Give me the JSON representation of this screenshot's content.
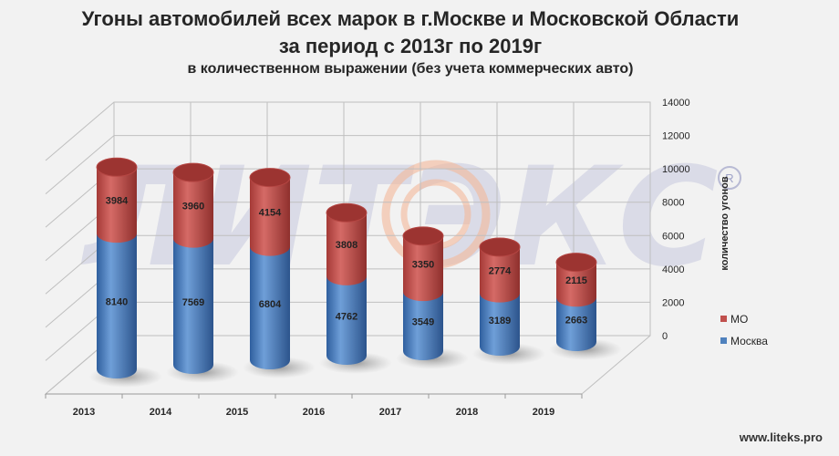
{
  "title_line1": "Угоны автомобилей всех марок в г.Москве и Московской Области",
  "title_line2": "за период с 2013г по 2019г",
  "subtitle": "в количественном выражении (без учета коммерческих авто)",
  "website": "www.liteks.pro",
  "watermark": {
    "text": "ЛИТЭКС",
    "registered": "R"
  },
  "colors": {
    "mo": "#c0504d",
    "moscow": "#4f81bd",
    "grid": "#bfbfbf",
    "text": "#262626",
    "watermark": "#c9cbe0"
  },
  "chart_data": {
    "type": "bar",
    "stacked": true,
    "categories": [
      "2013",
      "2014",
      "2015",
      "2016",
      "2017",
      "2018",
      "2019"
    ],
    "series": [
      {
        "name": "Москва",
        "values": [
          8140,
          7569,
          6804,
          4762,
          3549,
          3189,
          2663
        ]
      },
      {
        "name": "МО",
        "values": [
          3984,
          3960,
          4154,
          3808,
          3350,
          2774,
          2115
        ]
      }
    ],
    "ylabel": "количество угонов",
    "ylim": [
      0,
      14000
    ],
    "yticks": [
      0,
      2000,
      4000,
      6000,
      8000,
      10000,
      12000,
      14000
    ],
    "grid": true,
    "legend_position": "right"
  }
}
